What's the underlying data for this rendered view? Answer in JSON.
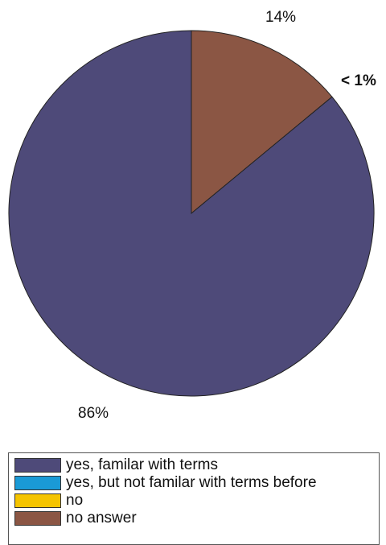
{
  "chart_data": {
    "type": "pie",
    "title": "",
    "slices": [
      {
        "name": "yes, familar with terms",
        "label": "yes, familar with terms",
        "value": 86,
        "value_label": "86%",
        "color": "#4e4a79"
      },
      {
        "name": "yes, but not familar with terms before",
        "label": "yes, but not familar with terms before",
        "value": 0,
        "value_label": "",
        "color": "#1a9ad6"
      },
      {
        "name": "no",
        "label": "no",
        "value": 0,
        "value_label": "",
        "color": "#f5c400"
      },
      {
        "name": "no answer",
        "label": "no answer",
        "value": 14,
        "value_label": "14%",
        "color": "#8b5644"
      }
    ],
    "annotations": [
      "< 1%"
    ],
    "legend_position": "bottom"
  },
  "legend": {
    "items": [
      {
        "label": "yes, familar with terms",
        "color": "#4e4a79"
      },
      {
        "label": "yes, but not familar with terms before",
        "color": "#1a9ad6"
      },
      {
        "label": "no",
        "color": "#f5c400"
      },
      {
        "label": "no answer",
        "color": "#8b5644"
      }
    ]
  }
}
